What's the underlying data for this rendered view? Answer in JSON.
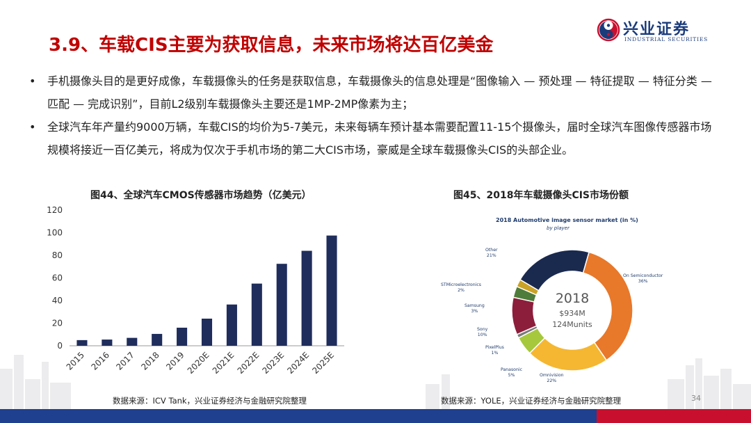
{
  "header": {
    "title": "3.9、车载CIS主要为获取信息，未来市场将达百亿美金",
    "logo_cn": "兴业证券",
    "logo_en": "INDUSTRIAL SECURITIES"
  },
  "bullets": [
    {
      "marker": "•",
      "text": "手机摄像头目的是更好成像，车载摄像头的任务是获取信息，车载摄像头的信息处理是“图像输入 — 预处理 — 特征提取 — 特征分类 — 匹配 — 完成识别”，目前L2级别车载摄像头主要还是1MP-2MP像素为主；"
    },
    {
      "marker": "•",
      "text": "全球汽车年产量约9000万辆，车载CIS的均价为5-7美元，未来每辆车预计基本需要配置11-15个摄像头，届时全球汽车图像传感器市场规模将接近一百亿美元，将成为仅次于手机市场的第二大CIS市场，豪威是全球车载摄像头CIS的头部企业。"
    }
  ],
  "figure44": {
    "title": "图44、全球汽车CMOS传感器市场趋势（亿美元）",
    "source": "数据来源：ICV Tank，兴业证券经济与金融研究院整理"
  },
  "figure45": {
    "title": "图45、2018年车载摄像头CIS市场份额",
    "source": "数据来源：YOLE，兴业证券经济与金融研究院整理",
    "inner_title": "2018 Automotive image sensor market (in %)",
    "inner_subtitle": "by player",
    "center_year": "2018",
    "center_value": "$934M",
    "center_units": "124Munits"
  },
  "page_number": "34",
  "colors": {
    "title_red": "#c00000",
    "bar_navy": "#1f2d5c",
    "band_blue": "#1f3f8f",
    "band_red": "#c8102e"
  },
  "chart_data": [
    {
      "type": "bar",
      "categories": [
        "2015",
        "2016",
        "2017",
        "2018",
        "2019",
        "2020E",
        "2021E",
        "2022E",
        "2023E",
        "2024E",
        "2025E"
      ],
      "values": [
        5,
        5.5,
        7,
        10.5,
        16,
        24,
        36.5,
        55,
        72.5,
        84,
        97.5
      ],
      "ylim": [
        0,
        120
      ],
      "yticks": [
        "0",
        "20",
        "40",
        "60",
        "80",
        "100",
        "120"
      ],
      "grid": false,
      "color": "#1f2d5c"
    },
    {
      "type": "pie",
      "variant": "donut",
      "slices": [
        {
          "name": "On Semiconductor",
          "label": "36%",
          "value": 36,
          "color": "#e8782a"
        },
        {
          "name": "Omnivision",
          "label": "22%",
          "value": 22,
          "color": "#f5b731"
        },
        {
          "name": "Panasonic",
          "label": "5%",
          "value": 5,
          "color": "#a6c83c"
        },
        {
          "name": "PixelPlus",
          "label": "1%",
          "value": 1,
          "color": "#7b7b7b"
        },
        {
          "name": "Sony",
          "label": "10%",
          "value": 10,
          "color": "#8c1e3c"
        },
        {
          "name": "Samsung",
          "label": "3%",
          "value": 3,
          "color": "#4e7c3a"
        },
        {
          "name": "STMicroelectronics",
          "label": "2%",
          "value": 2,
          "color": "#c9a227"
        },
        {
          "name": "Other",
          "label": "21%",
          "value": 21,
          "color": "#1a2a4f"
        }
      ]
    }
  ]
}
